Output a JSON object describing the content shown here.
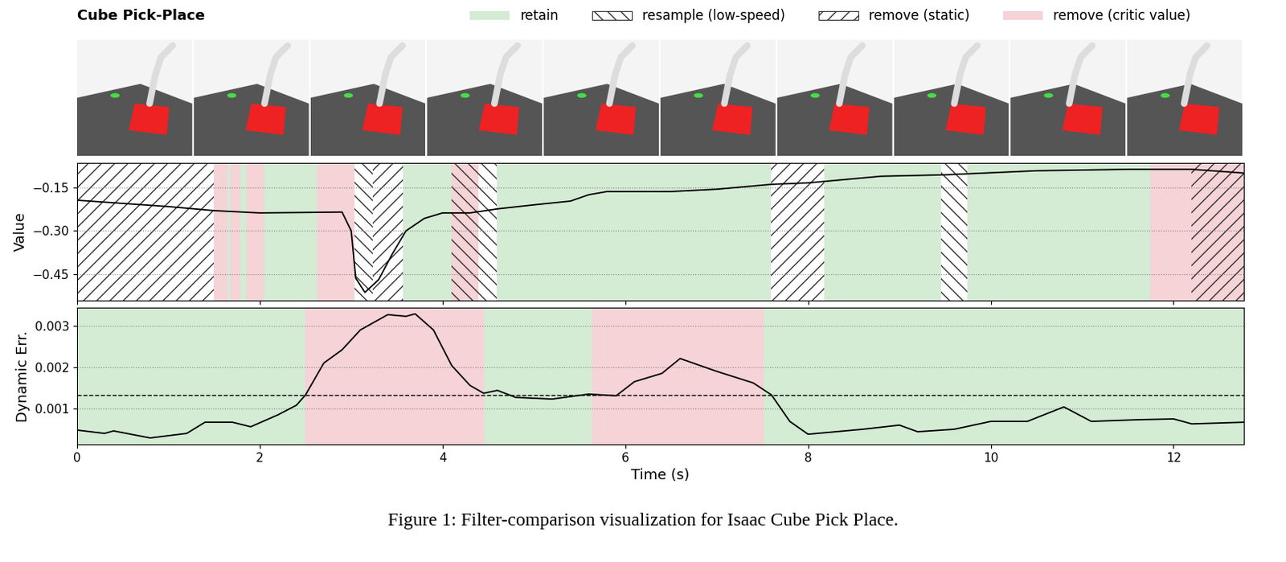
{
  "title": "Cube Pick-Place",
  "caption": "Figure 1: Filter-comparison visualization for Isaac Cube Pick Place.",
  "legend": "upper right",
  "legend_entries": [
    {
      "name": "retain",
      "color": "#d4ebd4"
    },
    {
      "name": "resample (low-speed)",
      "color": "#333333"
    },
    {
      "name": "remove (static)",
      "color": "#333333"
    },
    {
      "name": "remove (critic value)",
      "color": "#f5d3d6"
    }
  ],
  "chart_data": [
    {
      "type": "line",
      "y_label": "Value",
      "tick_labels": "y",
      "grid": true,
      "xlim": [
        0,
        12.77
      ],
      "xticks": [
        0,
        2,
        4,
        6,
        8,
        10,
        12
      ],
      "ylim": [
        -0.541,
        -0.065
      ],
      "yticks": [
        {
          "value": -0.15,
          "label": "−0.15"
        },
        {
          "value": -0.3,
          "label": "−0.30"
        },
        {
          "value": -0.45,
          "label": "−0.45"
        }
      ],
      "series": [
        {
          "color": "#000000",
          "x": [
            0,
            1,
            1.5,
            2,
            2.9,
            3.0,
            3.05,
            3.15,
            3.3,
            3.45,
            3.6,
            3.8,
            4.0,
            4.3,
            4.6,
            5.0,
            5.4,
            5.6,
            5.8,
            6.5,
            7.0,
            7.6,
            8.0,
            8.8,
            9.5,
            10.5,
            11.5,
            12.2,
            12.77
          ],
          "values": [
            -0.194,
            -0.216,
            -0.23,
            -0.238,
            -0.235,
            -0.3,
            -0.464,
            -0.513,
            -0.469,
            -0.38,
            -0.3,
            -0.257,
            -0.238,
            -0.238,
            -0.224,
            -0.21,
            -0.197,
            -0.175,
            -0.164,
            -0.164,
            -0.156,
            -0.139,
            -0.134,
            -0.111,
            -0.106,
            -0.092,
            -0.087,
            -0.087,
            -0.1
          ]
        }
      ],
      "regions": [
        {
          "kind": "remove (static)",
          "start": 0,
          "end": 1.5
        },
        {
          "kind": "remove (critic value)",
          "start": 1.5,
          "end": 1.64
        },
        {
          "kind": "retain",
          "start": 1.64,
          "end": 1.68
        },
        {
          "kind": "remove (critic value)",
          "start": 1.68,
          "end": 1.78
        },
        {
          "kind": "retain",
          "start": 1.78,
          "end": 1.85
        },
        {
          "kind": "remove (critic value)",
          "start": 1.85,
          "end": 2.04
        },
        {
          "kind": "retain",
          "start": 2.04,
          "end": 2.63
        },
        {
          "kind": "remove (critic value)",
          "start": 2.63,
          "end": 3.04
        },
        {
          "kind": "resample (low-speed)",
          "start": 3.04,
          "end": 3.24
        },
        {
          "kind": "remove (static)",
          "start": 3.24,
          "end": 3.57
        },
        {
          "kind": "retain",
          "start": 3.57,
          "end": 4.1
        },
        {
          "kind": "remove (critic value)",
          "start": 4.1,
          "end": 4.39
        },
        {
          "kind": "resample (low-speed)",
          "start": 4.1,
          "end": 4.59
        },
        {
          "kind": "retain",
          "start": 4.59,
          "end": 7.59
        },
        {
          "kind": "remove (static)",
          "start": 7.59,
          "end": 8.18
        },
        {
          "kind": "retain",
          "start": 8.18,
          "end": 9.46
        },
        {
          "kind": "resample (low-speed)",
          "start": 9.46,
          "end": 9.74
        },
        {
          "kind": "retain",
          "start": 9.74,
          "end": 11.74
        },
        {
          "kind": "remove (critic value)",
          "start": 11.74,
          "end": 12.77
        },
        {
          "kind": "remove (static)",
          "start": 12.2,
          "end": 12.77
        }
      ]
    },
    {
      "type": "line",
      "y_label": "Dynamic Err.",
      "x_label": "Time (s)",
      "grid": true,
      "xlim": [
        0,
        12.77
      ],
      "xticks": [
        0,
        2,
        4,
        6,
        8,
        10,
        12
      ],
      "ylim": [
        0.000135,
        0.00344
      ],
      "yticks": [
        0.001,
        0.002,
        0.003
      ],
      "threshold": 0.00133,
      "series": [
        {
          "color": "#000000",
          "x": [
            0,
            0.3,
            0.4,
            0.8,
            1.2,
            1.4,
            1.7,
            1.9,
            2.2,
            2.4,
            2.5,
            2.7,
            2.9,
            3.1,
            3.4,
            3.6,
            3.7,
            3.9,
            4.1,
            4.3,
            4.45,
            4.6,
            4.8,
            5.2,
            5.6,
            5.9,
            6.1,
            6.4,
            6.6,
            7.0,
            7.4,
            7.6,
            7.8,
            8.0,
            8.6,
            9.0,
            9.2,
            9.6,
            10.0,
            10.4,
            10.8,
            11.1,
            11.6,
            12.0,
            12.2,
            12.77
          ],
          "values": [
            0.00048,
            0.0004,
            0.00046,
            0.00029,
            0.0004,
            0.00067,
            0.00067,
            0.00056,
            0.00085,
            0.00108,
            0.00133,
            0.0021,
            0.00242,
            0.0029,
            0.00327,
            0.00323,
            0.00329,
            0.0029,
            0.00204,
            0.00156,
            0.00137,
            0.00144,
            0.00127,
            0.00123,
            0.00135,
            0.00131,
            0.00165,
            0.00185,
            0.00221,
            0.0019,
            0.00162,
            0.00133,
            0.00069,
            0.00038,
            0.0005,
            0.0006,
            0.00044,
            0.0005,
            0.00069,
            0.00069,
            0.00104,
            0.00069,
            0.00073,
            0.00075,
            0.00063,
            0.00067
          ]
        }
      ],
      "regions": [
        {
          "kind": "retain",
          "start": 0,
          "end": 2.5
        },
        {
          "kind": "remove (critic value)",
          "start": 2.5,
          "end": 4.45
        },
        {
          "kind": "retain",
          "start": 4.45,
          "end": 5.64
        },
        {
          "kind": "remove (critic value)",
          "start": 5.64,
          "end": 7.52
        },
        {
          "kind": "retain",
          "start": 7.52,
          "end": 12.77
        }
      ]
    }
  ]
}
